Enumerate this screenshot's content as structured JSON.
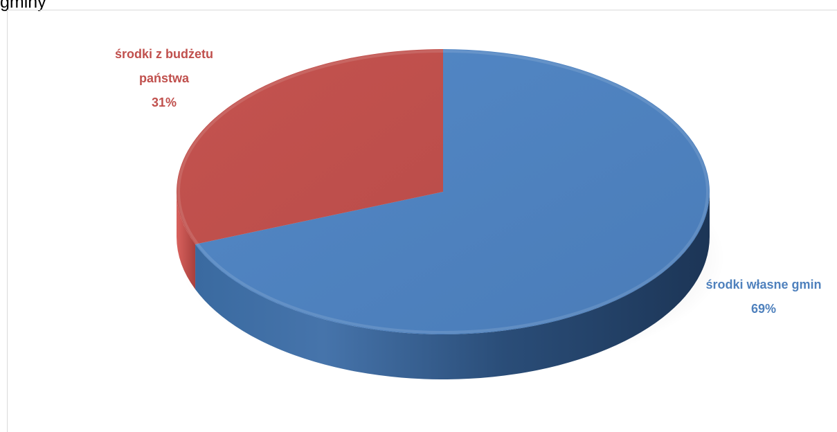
{
  "caption": {
    "text": "gminy"
  },
  "chart_data": {
    "type": "pie",
    "style": "3d",
    "categories": [
      "środki własne gminy",
      "środki z budżetu państwa"
    ],
    "values": [
      69,
      31
    ],
    "unit": "%",
    "colors": [
      "#4f81bd",
      "#c0504d"
    ],
    "data_labels": [
      {
        "line1": "środki własne gmin",
        "line2": "69%"
      },
      {
        "line1": "środki z budżetu",
        "line2": "państwa",
        "line3": "31%"
      }
    ],
    "legend": "none"
  }
}
